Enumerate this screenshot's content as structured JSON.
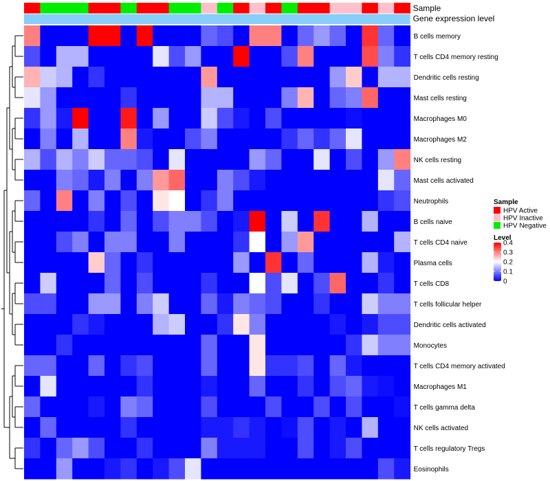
{
  "chart_data": {
    "type": "heatmap",
    "annotations": [
      {
        "name": "Sample"
      },
      {
        "name": "Gene expression level"
      }
    ],
    "columns": 24,
    "sample_groups": [
      "Active",
      "Negative",
      "Negative",
      "Negative",
      "Active",
      "Active",
      "Negative",
      "Active",
      "Active",
      "Negative",
      "Negative",
      "Inactive",
      "Negative",
      "Active",
      "Inactive",
      "Active",
      "Negative",
      "Active",
      "Active",
      "Inactive",
      "Inactive",
      "Active",
      "Inactive",
      "Active"
    ],
    "rows": [
      "B cells memory",
      "T cells CD4 memory resting",
      "Dendritic cells resting",
      "Mast cells resting",
      "Macrophages M0",
      "Macrophages M2",
      "NK cells resting",
      "Mast cells activated",
      "Neutrophils",
      "B cells naive",
      "T cells CD4 naive",
      "Plasma cells",
      "T cells CD8",
      "T cells follicular helper",
      "Dendritic cells activated",
      "Monocytes",
      "T cells CD4 memory activated",
      "Macrophages M1",
      "T cells gamma delta",
      "NK cells activated",
      "T cells regulatory  Tregs",
      "Eosinophils"
    ],
    "values": [
      [
        0.3,
        0,
        0,
        0,
        0.4,
        0.4,
        0,
        0.4,
        0,
        0,
        0,
        0.08,
        0.06,
        0,
        0.3,
        0.3,
        0,
        0.08,
        0.12,
        0.08,
        0,
        0.36,
        0.08,
        0
      ],
      [
        0.06,
        0,
        0.14,
        0.14,
        0,
        0,
        0,
        0,
        0.18,
        0.06,
        0.12,
        0,
        0,
        0.4,
        0,
        0,
        0.06,
        0.3,
        0,
        0,
        0,
        0.34,
        0.1,
        0.04
      ],
      [
        0.26,
        0.16,
        0.14,
        0,
        0.04,
        0,
        0,
        0,
        0,
        0,
        0,
        0.28,
        0,
        0,
        0,
        0,
        0,
        0,
        0,
        0.12,
        0.24,
        0,
        0.14,
        0.14
      ],
      [
        0.18,
        0.12,
        0,
        0,
        0,
        0,
        0.04,
        0,
        0,
        0,
        0,
        0.14,
        0.14,
        0,
        0,
        0,
        0.1,
        0.26,
        0,
        0.08,
        0.1,
        0.32,
        0,
        0
      ],
      [
        0.04,
        0.12,
        0.02,
        0.4,
        0,
        0,
        0.38,
        0,
        0.12,
        0,
        0,
        0.16,
        0.06,
        0.02,
        0,
        0.06,
        0,
        0,
        0,
        0,
        0.01,
        0,
        0,
        0
      ],
      [
        0,
        0.1,
        0,
        0.14,
        0,
        0,
        0.3,
        0.02,
        0,
        0,
        0.06,
        0.1,
        0,
        0,
        0,
        0,
        0.04,
        0.08,
        0.04,
        0.08,
        0.18,
        0,
        0,
        0
      ],
      [
        0.14,
        0.06,
        0.14,
        0.1,
        0.16,
        0.08,
        0.08,
        0.06,
        0,
        0.18,
        0,
        0,
        0,
        0,
        0.12,
        0.08,
        0,
        0,
        0.18,
        0,
        0.06,
        0,
        0.12,
        0.3
      ],
      [
        0,
        0,
        0.1,
        0.08,
        0.02,
        0.1,
        0,
        0.1,
        0.28,
        0.32,
        0,
        0,
        0.1,
        0.06,
        0.02,
        0,
        0,
        0,
        0,
        0,
        0,
        0,
        0.18,
        0.08
      ],
      [
        0.08,
        0,
        0.3,
        0,
        0.1,
        0,
        0.06,
        0,
        0.22,
        0.2,
        0,
        0.04,
        0.1,
        0,
        0,
        0,
        0,
        0,
        0,
        0,
        0,
        0,
        0.04,
        0.06
      ],
      [
        0,
        0,
        0,
        0,
        0.04,
        0,
        0.08,
        0,
        0.06,
        0.1,
        0.1,
        0.06,
        0,
        0.02,
        0.4,
        0,
        0.16,
        0,
        0.36,
        0,
        0,
        0.14,
        0,
        0
      ],
      [
        0,
        0,
        0.06,
        0.1,
        0,
        0.1,
        0.1,
        0,
        0,
        0.1,
        0,
        0,
        0,
        0.04,
        0.2,
        0,
        0.12,
        0.28,
        0,
        0,
        0,
        0,
        0,
        0.14
      ],
      [
        0,
        0,
        0,
        0,
        0.24,
        0.08,
        0,
        0.04,
        0,
        0,
        0,
        0,
        0,
        0.12,
        0,
        0.36,
        0,
        0.08,
        0,
        0,
        0,
        0.14,
        0.02,
        0
      ],
      [
        0,
        0.16,
        0,
        0,
        0,
        0.08,
        0,
        0.06,
        0,
        0,
        0,
        0.04,
        0,
        0,
        0.2,
        0.06,
        0.18,
        0,
        0.06,
        0.32,
        0,
        0,
        0.04,
        0
      ],
      [
        0.06,
        0.06,
        0,
        0,
        0.12,
        0.12,
        0,
        0.1,
        0.16,
        0,
        0,
        0.08,
        0.02,
        0.1,
        0.08,
        0.06,
        0,
        0,
        0.04,
        0,
        0,
        0.16,
        0.1,
        0.1
      ],
      [
        0,
        0,
        0,
        0.04,
        0.02,
        0,
        0,
        0,
        0.14,
        0.16,
        0,
        0,
        0.04,
        0.22,
        0.1,
        0,
        0,
        0,
        0,
        0.02,
        0,
        0.02,
        0.06,
        0.06
      ],
      [
        0,
        0,
        0.04,
        0,
        0,
        0,
        0,
        0,
        0,
        0,
        0,
        0.08,
        0,
        0,
        0.22,
        0,
        0,
        0,
        0,
        0,
        0.04,
        0.16,
        0.1,
        0.1
      ],
      [
        0.08,
        0.08,
        0,
        0,
        0.08,
        0,
        0.04,
        0.06,
        0,
        0,
        0,
        0.08,
        0,
        0,
        0.22,
        0.04,
        0.04,
        0.06,
        0,
        0.08,
        0.02,
        0,
        0,
        0
      ],
      [
        0,
        0.18,
        0,
        0,
        0,
        0,
        0,
        0.04,
        0,
        0,
        0,
        0.02,
        0,
        0,
        0.08,
        0,
        0,
        0.04,
        0,
        0.06,
        0.08,
        0.02,
        0.01,
        0
      ],
      [
        0.08,
        0,
        0,
        0,
        0.02,
        0,
        0.1,
        0.08,
        0,
        0,
        0,
        0.06,
        0,
        0,
        0,
        0.06,
        0,
        0,
        0.06,
        0,
        0.06,
        0,
        0,
        0.01
      ],
      [
        0,
        0.08,
        0,
        0,
        0,
        0,
        0.04,
        0,
        0,
        0,
        0,
        0.02,
        0.02,
        0.04,
        0.02,
        0,
        0.01,
        0.06,
        0,
        0.02,
        0,
        0.14,
        0,
        0
      ],
      [
        0.04,
        0,
        0.08,
        0.12,
        0.06,
        0,
        0,
        0.04,
        0,
        0,
        0,
        0.1,
        0.02,
        0.02,
        0.02,
        0,
        0,
        0.06,
        0,
        0.02,
        0.06,
        0,
        0,
        0
      ],
      [
        0,
        0,
        0.12,
        0,
        0,
        0.02,
        0.04,
        0,
        0.02,
        0.06,
        0.18,
        0,
        0,
        0,
        0,
        0,
        0,
        0,
        0,
        0,
        0,
        0,
        0.06,
        0.02
      ]
    ],
    "legend": {
      "sample_title": "Sample",
      "sample_items": [
        {
          "key": "Active",
          "label": "HPV Active",
          "color": "#ff0000"
        },
        {
          "key": "Inactive",
          "label": "HPV Inactive",
          "color": "#ffc0cb"
        },
        {
          "key": "Negative",
          "label": "HPV Negative",
          "color": "#00ee00"
        }
      ],
      "level_title": "Level",
      "level_ticks": [
        0.4,
        0.3,
        0.2,
        0.1,
        0
      ],
      "level_range": [
        0,
        0.4
      ]
    },
    "colors": {
      "low": "#0000ff",
      "mid": "#ffffff",
      "high": "#ff0000",
      "expression_bar": "#87cefa",
      "dendrogram": "#000000"
    }
  }
}
